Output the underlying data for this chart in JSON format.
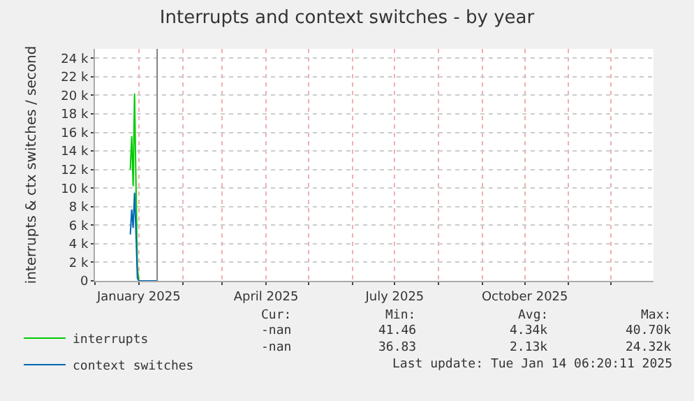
{
  "chart_data": {
    "type": "line",
    "title": "Interrupts and context switches - by year",
    "ylabel": "interrupts & ctx switches / second",
    "x": [
      "2024-12-26",
      "2024-12-27",
      "2024-12-28",
      "2024-12-29",
      "2024-12-30",
      "2024-12-31",
      "2025-01-01",
      "2025-01-14"
    ],
    "series": [
      {
        "name": "interrupts",
        "color": "#00cc00",
        "values": [
          12000,
          15600,
          10200,
          20200,
          10500,
          1500,
          0,
          0
        ]
      },
      {
        "name": "context switches",
        "color": "#0066b3",
        "values": [
          5000,
          7700,
          5700,
          9500,
          5200,
          300,
          0,
          0
        ]
      }
    ],
    "xlim": [
      "2024-12-01",
      "2025-12-31"
    ],
    "xticks": [
      {
        "value": "2024-12-01",
        "label": null
      },
      {
        "value": "2025-01-01",
        "label": "January 2025"
      },
      {
        "value": "2025-02-01",
        "label": null
      },
      {
        "value": "2025-03-01",
        "label": null
      },
      {
        "value": "2025-04-01",
        "label": "April 2025"
      },
      {
        "value": "2025-05-01",
        "label": null
      },
      {
        "value": "2025-06-01",
        "label": null
      },
      {
        "value": "2025-07-01",
        "label": "July 2025"
      },
      {
        "value": "2025-08-01",
        "label": null
      },
      {
        "value": "2025-09-01",
        "label": null
      },
      {
        "value": "2025-10-01",
        "label": "October 2025"
      },
      {
        "value": "2025-11-01",
        "label": null
      },
      {
        "value": "2025-12-01",
        "label": null
      }
    ],
    "ylim": [
      0,
      25000
    ],
    "yticks": [
      0,
      {
        "value": 2000,
        "label": "2 k"
      },
      {
        "value": 4000,
        "label": "4 k"
      },
      {
        "value": 6000,
        "label": "6 k"
      },
      {
        "value": 8000,
        "label": "8 k"
      },
      {
        "value": 10000,
        "label": "10 k"
      },
      {
        "value": 12000,
        "label": "12 k"
      },
      {
        "value": 14000,
        "label": "14 k"
      },
      {
        "value": 16000,
        "label": "16 k"
      },
      {
        "value": 18000,
        "label": "18 k"
      },
      {
        "value": 20000,
        "label": "20 k"
      },
      {
        "value": 22000,
        "label": "22 k"
      },
      {
        "value": 24000,
        "label": "24 k"
      }
    ],
    "ref_lines": [
      {
        "axis": "x",
        "value": "2025-01-14",
        "color": "#808080"
      }
    ],
    "grid": true,
    "legend": "bottom left",
    "marker": "none",
    "line_style": "solid",
    "annotations": [
      "Cur:",
      "Min:",
      "Avg:",
      "Max:",
      "-nan",
      "41.46",
      "4.34k",
      "40.70k",
      "-nan",
      "36.83",
      "2.13k",
      "24.32k",
      "Last update: Tue Jan 14 06:20:11 2025"
    ]
  }
}
